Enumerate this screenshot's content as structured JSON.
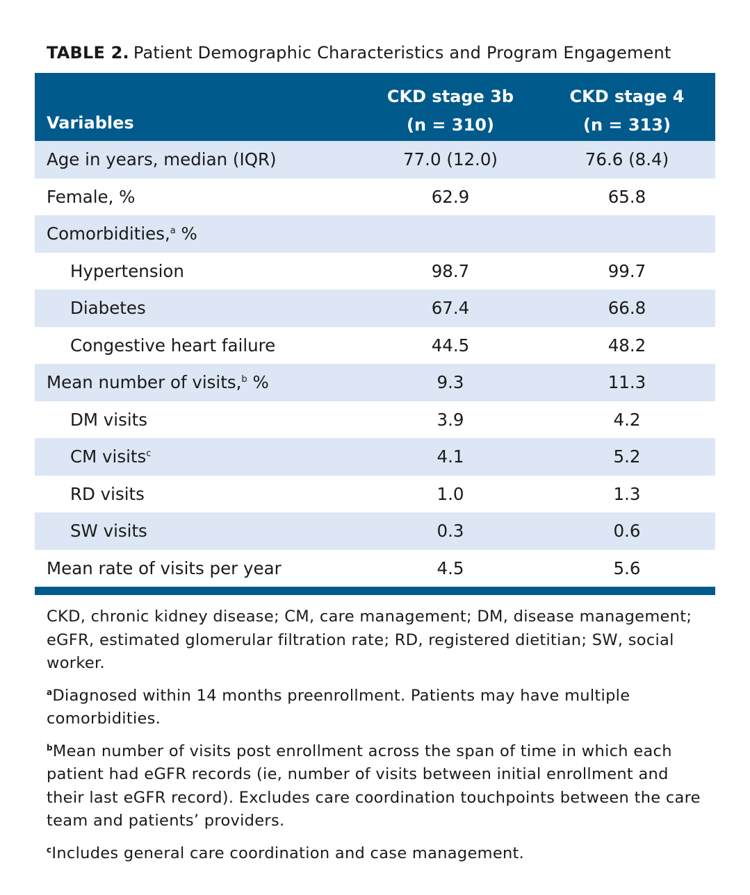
{
  "title": {
    "label": "TABLE 2.",
    "text": "Patient Demographic Characteristics and Program Engagement"
  },
  "table": {
    "columns": [
      {
        "label": "Variables"
      },
      {
        "label": "CKD stage 3b",
        "n": "(n = 310)"
      },
      {
        "label": "CKD stage 4",
        "n": "(n = 313)"
      }
    ],
    "rows": [
      {
        "label": "Age in years, median (IQR)",
        "values": [
          "77.0 (12.0)",
          "76.6 (8.4)"
        ]
      },
      {
        "label": "Female, %",
        "values": [
          "62.9",
          "65.8"
        ]
      },
      {
        "label": "Comorbidities,",
        "note": "a",
        "suffix": "%"
      },
      {
        "label": "Hypertension",
        "indent": true,
        "values": [
          "98.7",
          "99.7"
        ]
      },
      {
        "label": "Diabetes",
        "indent": true,
        "values": [
          "67.4",
          "66.8"
        ]
      },
      {
        "label": "Congestive heart failure",
        "indent": true,
        "values": [
          "44.5",
          "48.2"
        ]
      },
      {
        "label": "Mean number of visits,",
        "note": "b",
        "suffix": "%",
        "values": [
          "9.3",
          "11.3"
        ]
      },
      {
        "label": "DM visits",
        "indent": true,
        "values": [
          "3.9",
          "4.2"
        ]
      },
      {
        "label": "CM visits",
        "note": "c",
        "indent": true,
        "values": [
          "4.1",
          "5.2"
        ]
      },
      {
        "label": "RD visits",
        "indent": true,
        "values": [
          "1.0",
          "1.3"
        ]
      },
      {
        "label": "SW visits",
        "indent": true,
        "values": [
          "0.3",
          "0.6"
        ]
      },
      {
        "label": "Mean rate of visits per year",
        "values": [
          "4.5",
          "5.6"
        ]
      }
    ]
  },
  "footnotes": {
    "abbreviations": "CKD, chronic kidney disease; CM, care management; DM, disease management; eGFR, estimated glomerular filtration rate; RD, registered dietitian; SW, social worker.",
    "notes": [
      {
        "marker": "a",
        "text": "Diagnosed within 14 months preenrollment. Patients may have multiple comorbidities."
      },
      {
        "marker": "b",
        "text": "Mean number of visits post enrollment across the span of time in which each patient had eGFR records (ie, number of visits between initial enrollment and their last eGFR record). Excludes care coordination touchpoints between the care team and patients’ providers."
      },
      {
        "marker": "c",
        "text": "Includes general care coordination and case management."
      }
    ]
  }
}
